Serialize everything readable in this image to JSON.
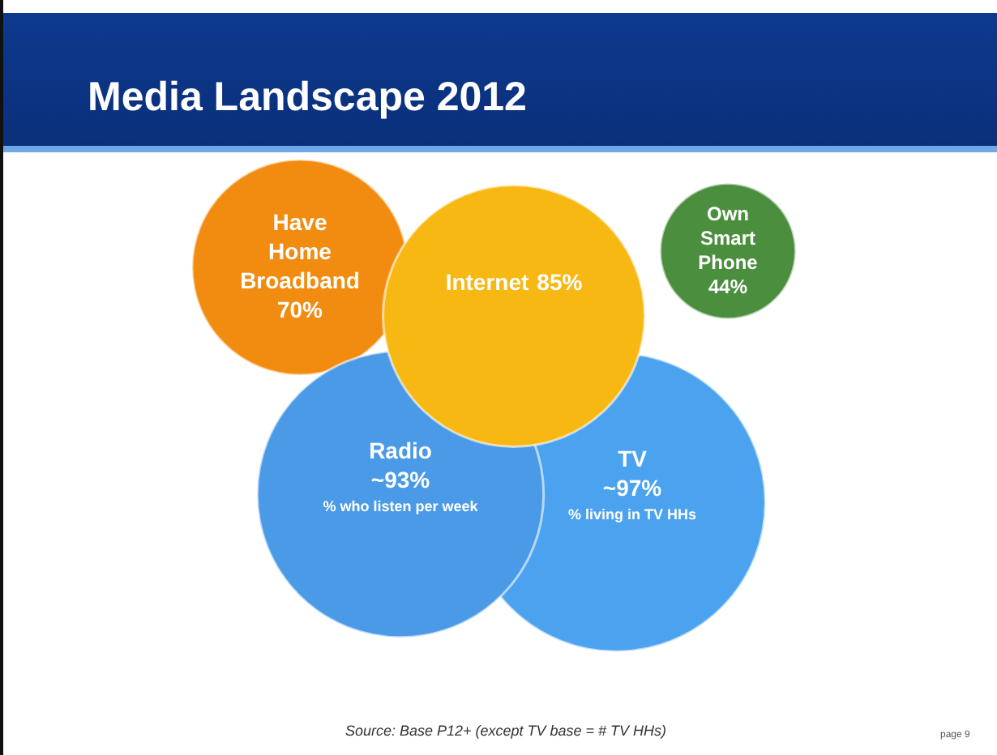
{
  "chart_data": {
    "type": "other",
    "title": "Media Landscape 2012",
    "categories": [
      "Have Home Broadband",
      "Internet",
      "Radio",
      "TV",
      "Own Smart Phone"
    ],
    "values": [
      70,
      85,
      93,
      97,
      44
    ],
    "value_labels": [
      "70%",
      "85%",
      "~93%",
      "~97%",
      "44%"
    ],
    "colors": [
      "#f28c10",
      "#f7b814",
      "#4a9ae8",
      "#4ba2ef",
      "#4a8e3e"
    ],
    "annotations": [
      {
        "text": "% who listen per week",
        "x": "Radio"
      },
      {
        "text": "% living in TV HHs",
        "x": "TV"
      },
      "Source: Base P12+ (except TV base = # TV HHs)",
      "page 9"
    ]
  }
}
